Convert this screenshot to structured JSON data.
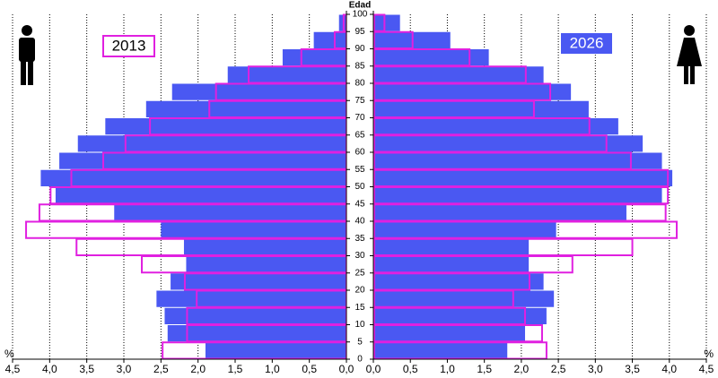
{
  "chart_data": {
    "type": "pyramid",
    "y_label": "Edad",
    "x_unit": "%",
    "ylim": [
      0,
      100
    ],
    "bins": [
      0,
      5,
      10,
      15,
      20,
      25,
      30,
      35,
      40,
      45,
      50,
      55,
      60,
      65,
      70,
      75,
      80,
      85,
      90,
      95,
      100
    ],
    "xlim": [
      0,
      4.5
    ],
    "xticks": [
      {
        "value": 4.5,
        "label": "4,5"
      },
      {
        "value": 4.0,
        "label": "4,0"
      },
      {
        "value": 3.5,
        "label": "3,5"
      },
      {
        "value": 3.0,
        "label": "3,0"
      },
      {
        "value": 2.5,
        "label": "2,5"
      },
      {
        "value": 2.0,
        "label": "2,0"
      },
      {
        "value": 1.5,
        "label": "1,5"
      },
      {
        "value": 1.0,
        "label": "1,0"
      },
      {
        "value": 0.5,
        "label": "0,5"
      },
      {
        "value": 0,
        "label": "0,0"
      }
    ],
    "grid": true,
    "series": [
      {
        "name": "2026",
        "style": "fill",
        "color": "#4a58f2",
        "male": [
          1.9,
          2.41,
          2.45,
          2.56,
          2.37,
          2.16,
          2.19,
          2.5,
          3.13,
          3.92,
          4.12,
          3.87,
          3.62,
          3.25,
          2.7,
          2.35,
          1.6,
          0.86,
          0.44,
          0.1
        ],
        "female": [
          1.81,
          2.05,
          2.34,
          2.44,
          2.3,
          2.1,
          2.1,
          2.47,
          3.42,
          3.9,
          4.04,
          3.9,
          3.64,
          3.31,
          2.91,
          2.67,
          2.3,
          1.56,
          1.04,
          0.36
        ]
      },
      {
        "name": "2013",
        "style": "outline",
        "color": "#e020e0",
        "male": [
          2.49,
          2.16,
          2.16,
          2.03,
          2.19,
          2.77,
          3.65,
          4.33,
          4.15,
          4.0,
          3.72,
          3.29,
          2.99,
          2.66,
          1.86,
          1.77,
          1.33,
          0.62,
          0.17,
          0.05
        ],
        "female": [
          2.34,
          2.28,
          2.05,
          1.89,
          2.11,
          2.69,
          3.5,
          4.1,
          3.95,
          3.98,
          3.98,
          3.48,
          3.15,
          2.92,
          2.17,
          2.39,
          2.06,
          1.3,
          0.53,
          0.15
        ]
      }
    ]
  }
}
